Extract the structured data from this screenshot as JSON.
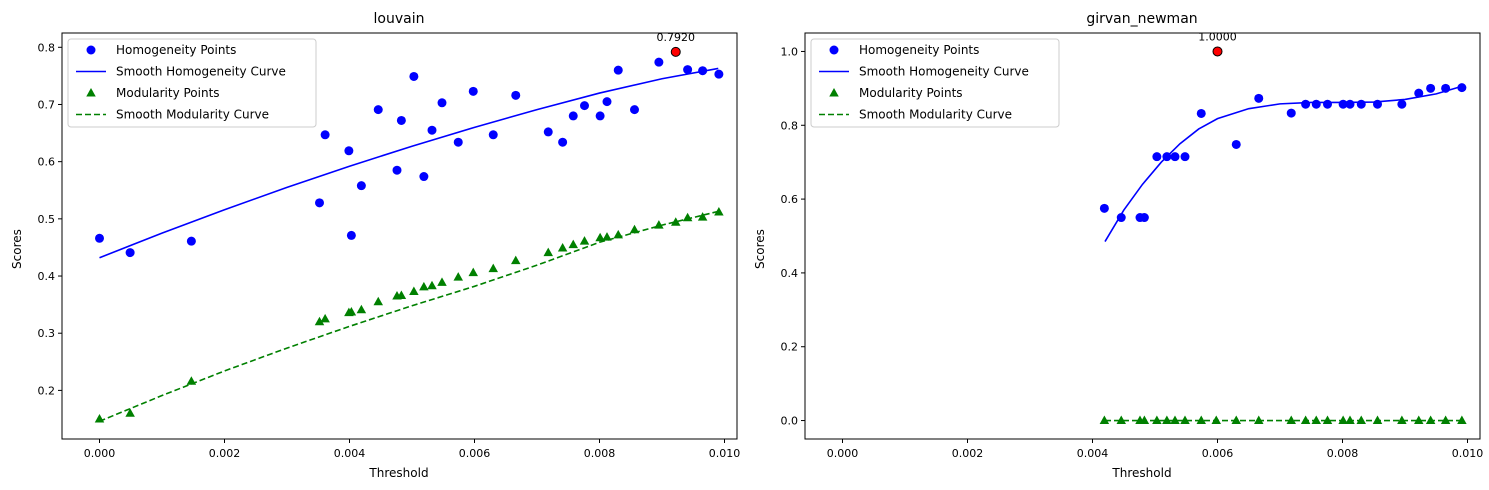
{
  "chart_data": [
    {
      "type": "line",
      "title": "louvain",
      "xlabel": "Threshold",
      "ylabel": "Scores",
      "xlim": [
        -0.0006,
        0.0102
      ],
      "ylim": [
        0.115,
        0.825
      ],
      "xticks": [
        0.0,
        0.002,
        0.004,
        0.006,
        0.008,
        0.01
      ],
      "xtick_labels": [
        "0.000",
        "0.002",
        "0.004",
        "0.006",
        "0.008",
        "0.010"
      ],
      "yticks": [
        0.2,
        0.3,
        0.4,
        0.5,
        0.6,
        0.7,
        0.8
      ],
      "ytick_labels": [
        "0.2",
        "0.3",
        "0.4",
        "0.5",
        "0.6",
        "0.7",
        "0.8"
      ],
      "grid": false,
      "legend_position": "upper-left",
      "series": [
        {
          "name": "Homogeneity Points",
          "kind": "scatter",
          "marker": "circle",
          "color": "#0000ff",
          "x": [
            0.0,
            0.00049,
            0.00147,
            0.00352,
            0.00361,
            0.00399,
            0.00403,
            0.00419,
            0.00446,
            0.00476,
            0.00483,
            0.00503,
            0.00519,
            0.00532,
            0.00548,
            0.00574,
            0.00598,
            0.0063,
            0.00666,
            0.00718,
            0.00741,
            0.00758,
            0.00776,
            0.00801,
            0.00812,
            0.0083,
            0.00856,
            0.00895,
            0.00941,
            0.00965,
            0.00991
          ],
          "y": [
            0.466,
            0.441,
            0.461,
            0.528,
            0.647,
            0.619,
            0.471,
            0.558,
            0.691,
            0.585,
            0.672,
            0.749,
            0.574,
            0.655,
            0.703,
            0.634,
            0.723,
            0.647,
            0.716,
            0.652,
            0.634,
            0.68,
            0.698,
            0.68,
            0.705,
            0.76,
            0.691,
            0.774,
            0.761,
            0.759,
            0.753
          ]
        },
        {
          "name": "Smooth Homogeneity Curve",
          "kind": "line",
          "style": "solid",
          "color": "#0000ff",
          "x": [
            0.0,
            0.001,
            0.002,
            0.003,
            0.004,
            0.005,
            0.006,
            0.007,
            0.008,
            0.009,
            0.0099
          ],
          "y": [
            0.432,
            0.475,
            0.516,
            0.555,
            0.592,
            0.627,
            0.66,
            0.691,
            0.72,
            0.745,
            0.763
          ]
        },
        {
          "name": "Modularity Points",
          "kind": "scatter",
          "marker": "triangle",
          "color": "#008000",
          "x": [
            0.0,
            0.00049,
            0.00147,
            0.00352,
            0.00361,
            0.00399,
            0.00403,
            0.00419,
            0.00446,
            0.00476,
            0.00483,
            0.00503,
            0.00519,
            0.00532,
            0.00548,
            0.00574,
            0.00598,
            0.0063,
            0.00666,
            0.00718,
            0.00741,
            0.00758,
            0.00776,
            0.00801,
            0.00812,
            0.0083,
            0.00856,
            0.00895,
            0.00922,
            0.00941,
            0.00965,
            0.00991
          ],
          "y": [
            0.15,
            0.16,
            0.216,
            0.32,
            0.325,
            0.336,
            0.337,
            0.341,
            0.355,
            0.365,
            0.366,
            0.373,
            0.381,
            0.383,
            0.389,
            0.398,
            0.406,
            0.413,
            0.427,
            0.441,
            0.449,
            0.455,
            0.461,
            0.467,
            0.468,
            0.472,
            0.481,
            0.489,
            0.494,
            0.502,
            0.503,
            0.512
          ]
        },
        {
          "name": "Smooth Modularity Curve",
          "kind": "line",
          "style": "dashed",
          "color": "#008000",
          "x": [
            0.0,
            0.001,
            0.002,
            0.003,
            0.004,
            0.005,
            0.006,
            0.007,
            0.008,
            0.009,
            0.0099
          ],
          "y": [
            0.146,
            0.191,
            0.234,
            0.274,
            0.312,
            0.348,
            0.382,
            0.419,
            0.459,
            0.489,
            0.513
          ]
        }
      ],
      "highlight": {
        "x": 0.00922,
        "y": 0.792,
        "label": "0.7920",
        "color": "#ff0000"
      }
    },
    {
      "type": "line",
      "title": "girvan_newman",
      "xlabel": "Threshold",
      "ylabel": "Scores",
      "xlim": [
        -0.0006,
        0.0102
      ],
      "ylim": [
        -0.05,
        1.05
      ],
      "xticks": [
        0.0,
        0.002,
        0.004,
        0.006,
        0.008,
        0.01
      ],
      "xtick_labels": [
        "0.000",
        "0.002",
        "0.004",
        "0.006",
        "0.008",
        "0.010"
      ],
      "yticks": [
        0.0,
        0.2,
        0.4,
        0.6,
        0.8,
        1.0
      ],
      "ytick_labels": [
        "0.0",
        "0.2",
        "0.4",
        "0.6",
        "0.8",
        "1.0"
      ],
      "grid": false,
      "legend_position": "upper-left",
      "series": [
        {
          "name": "Homogeneity Points",
          "kind": "scatter",
          "marker": "circle",
          "color": "#0000ff",
          "x": [
            0.00419,
            0.00446,
            0.00476,
            0.00483,
            0.00503,
            0.00519,
            0.00532,
            0.00548,
            0.00574,
            0.0063,
            0.00666,
            0.00718,
            0.00741,
            0.00758,
            0.00776,
            0.00801,
            0.00812,
            0.0083,
            0.00856,
            0.00895,
            0.00922,
            0.00941,
            0.00965,
            0.00991
          ],
          "y": [
            0.575,
            0.55,
            0.55,
            0.55,
            0.715,
            0.715,
            0.715,
            0.715,
            0.832,
            0.748,
            0.873,
            0.833,
            0.857,
            0.857,
            0.857,
            0.857,
            0.857,
            0.857,
            0.857,
            0.857,
            0.887,
            0.9,
            0.9,
            0.902
          ]
        },
        {
          "name": "Smooth Homogeneity Curve",
          "kind": "line",
          "style": "solid",
          "color": "#0000ff",
          "x": [
            0.0042,
            0.0045,
            0.0048,
            0.0051,
            0.0054,
            0.0057,
            0.006,
            0.0065,
            0.007,
            0.0075,
            0.008,
            0.0085,
            0.009,
            0.0095,
            0.0099
          ],
          "y": [
            0.485,
            0.57,
            0.64,
            0.7,
            0.75,
            0.79,
            0.818,
            0.845,
            0.858,
            0.862,
            0.862,
            0.863,
            0.87,
            0.885,
            0.905
          ]
        },
        {
          "name": "Modularity Points",
          "kind": "scatter",
          "marker": "triangle",
          "color": "#008000",
          "x": [
            0.00419,
            0.00446,
            0.00476,
            0.00483,
            0.00503,
            0.00519,
            0.00532,
            0.00548,
            0.00574,
            0.00598,
            0.0063,
            0.00666,
            0.00718,
            0.00741,
            0.00758,
            0.00776,
            0.00801,
            0.00812,
            0.0083,
            0.00856,
            0.00895,
            0.00922,
            0.00941,
            0.00965,
            0.00991
          ],
          "y": [
            0,
            0,
            0,
            0,
            0,
            0,
            0,
            0,
            0,
            0,
            0,
            0,
            0,
            0,
            0,
            0,
            0,
            0,
            0,
            0,
            0,
            0,
            0,
            0,
            0
          ]
        },
        {
          "name": "Smooth Modularity Curve",
          "kind": "line",
          "style": "dashed",
          "color": "#008000",
          "x": [
            0.0042,
            0.0099
          ],
          "y": [
            0.0,
            0.0
          ]
        }
      ],
      "highlight": {
        "x": 0.006,
        "y": 1.0,
        "label": "1.0000",
        "color": "#ff0000"
      }
    }
  ]
}
